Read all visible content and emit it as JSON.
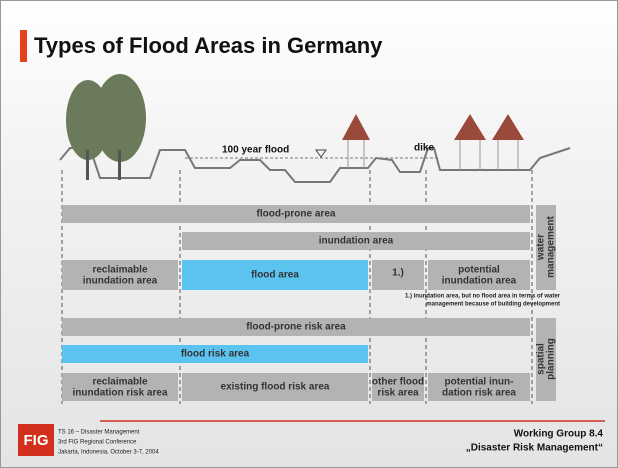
{
  "title": "Types of Flood Areas in Germany",
  "profile": {
    "flood_label": "100 year flood",
    "dike_label": "dike"
  },
  "rows": {
    "flood_prone_area": "flood-prone area",
    "inundation_area": "inundation area",
    "reclaimable_inundation_area": [
      "reclaimable",
      "inundation area"
    ],
    "flood_area": "flood area",
    "note_marker": "1.)",
    "potential_inundation_area": [
      "potential",
      "inundation area"
    ],
    "note": [
      "1.) inundation area, but no flood area in terms of water",
      "management because of building development"
    ],
    "flood_prone_risk_area": "flood-prone risk area",
    "flood_risk_area": "flood risk area",
    "reclaimable_inundation_risk_area": [
      "reclaimable",
      "inundation risk area"
    ],
    "existing_flood_risk_area": "existing flood risk area",
    "other_flood_risk_area": [
      "other flood",
      "risk area"
    ],
    "potential_inundation_risk_area": [
      "potential inun-",
      "dation risk area"
    ]
  },
  "side_labels": {
    "water_management": [
      "water",
      "management"
    ],
    "spatial_planning": [
      "spatial",
      "planning"
    ]
  },
  "footer": {
    "logo": "FIG",
    "left": [
      "TS 16 – Disaster Management",
      "3rd FIG Regional Conference",
      "Jakarta, Indonesia, October 3-7, 2004"
    ],
    "right": [
      "Working Group 8.4",
      "„Disaster Risk Management“"
    ]
  }
}
